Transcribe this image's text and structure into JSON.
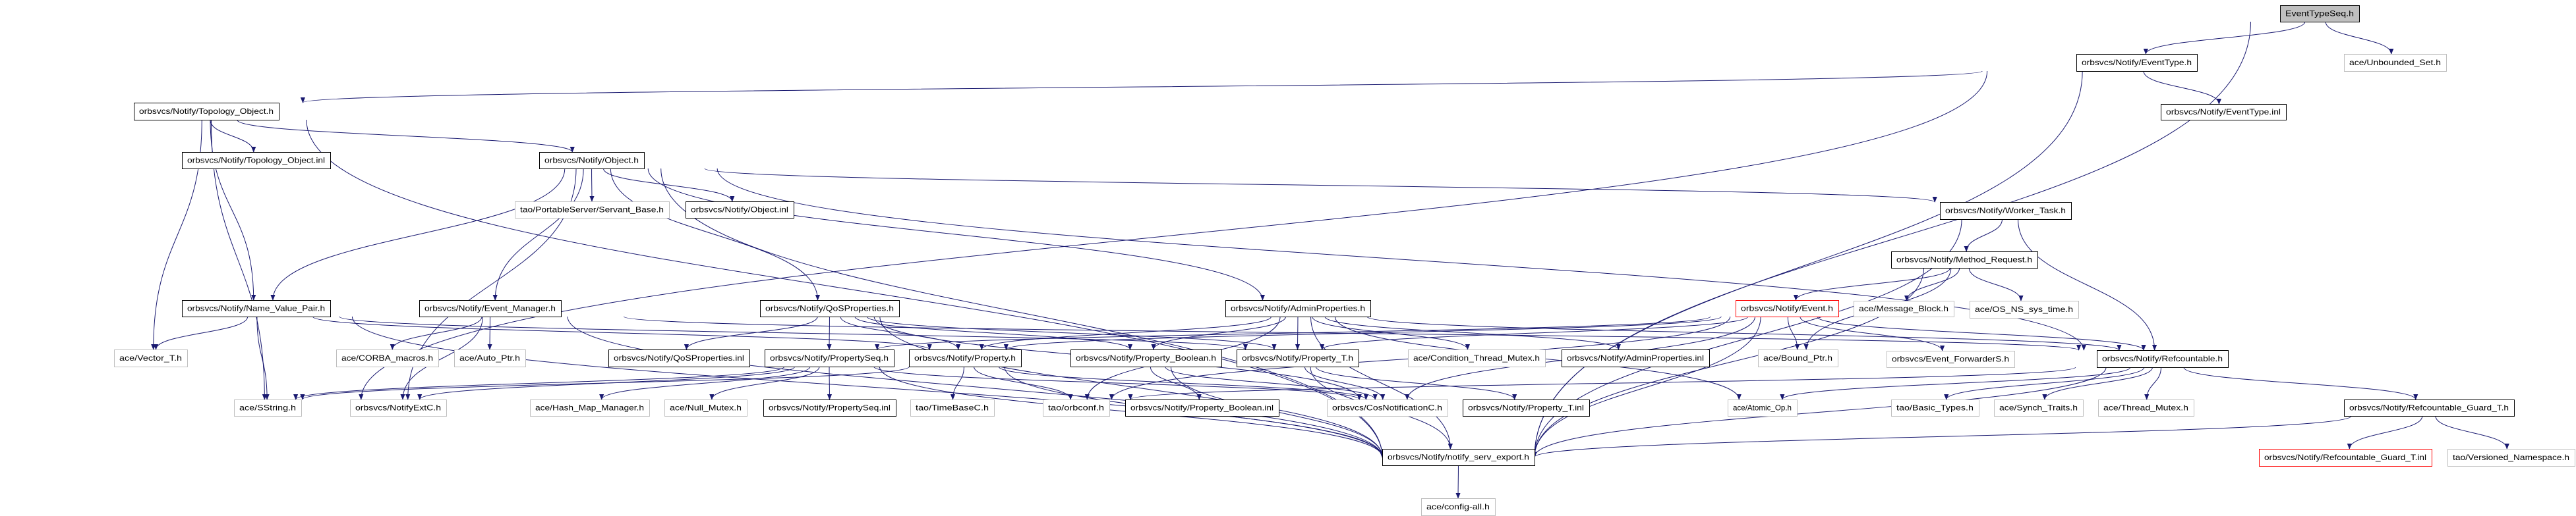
{
  "graph": {
    "edge_color": "#191970",
    "node_styles": {
      "root": {
        "fill": "#bfbfbf",
        "stroke": "#000000"
      },
      "documented": {
        "fill": "#ffffff",
        "stroke": "#000000"
      },
      "external": {
        "fill": "#ffffff",
        "stroke": "#bfbfbf"
      },
      "truncated": {
        "fill": "#ffffff",
        "stroke": "#ff0000"
      }
    },
    "nodes": [
      {
        "id": "root",
        "label": "EventTypeSeq.h",
        "style": "root"
      },
      {
        "id": "eventtype_h",
        "label": "orbsvcs/Notify/EventType.h",
        "style": "documented"
      },
      {
        "id": "unbounded_set",
        "label": "ace/Unbounded_Set.h",
        "style": "external"
      },
      {
        "id": "eventtype_inl",
        "label": "orbsvcs/Notify/EventType.inl",
        "style": "documented"
      },
      {
        "id": "topology_h",
        "label": "orbsvcs/Notify/Topology_Object.h",
        "style": "documented"
      },
      {
        "id": "topology_inl",
        "label": "orbsvcs/Notify/Topology_Object.inl",
        "style": "documented"
      },
      {
        "id": "object_h",
        "label": "orbsvcs/Notify/Object.h",
        "style": "documented"
      },
      {
        "id": "servant_base",
        "label": "tao/PortableServer/Servant_Base.h",
        "style": "external"
      },
      {
        "id": "object_inl",
        "label": "orbsvcs/Notify/Object.inl",
        "style": "documented"
      },
      {
        "id": "worker_task",
        "label": "orbsvcs/Notify/Worker_Task.h",
        "style": "documented"
      },
      {
        "id": "method_request",
        "label": "orbsvcs/Notify/Method_Request.h",
        "style": "documented"
      },
      {
        "id": "name_value_pair",
        "label": "orbsvcs/Notify/Name_Value_Pair.h",
        "style": "documented"
      },
      {
        "id": "event_manager",
        "label": "orbsvcs/Notify/Event_Manager.h",
        "style": "documented"
      },
      {
        "id": "qos_h",
        "label": "orbsvcs/Notify/QoSProperties.h",
        "style": "documented"
      },
      {
        "id": "admin_h",
        "label": "orbsvcs/Notify/AdminProperties.h",
        "style": "documented"
      },
      {
        "id": "event_h",
        "label": "orbsvcs/Notify/Event.h",
        "style": "truncated"
      },
      {
        "id": "message_block",
        "label": "ace/Message_Block.h",
        "style": "external"
      },
      {
        "id": "os_ns_sys_time",
        "label": "ace/OS_NS_sys_time.h",
        "style": "external"
      },
      {
        "id": "vector_t",
        "label": "ace/Vector_T.h",
        "style": "external"
      },
      {
        "id": "corba_macros",
        "label": "ace/CORBA_macros.h",
        "style": "external"
      },
      {
        "id": "auto_ptr",
        "label": "ace/Auto_Ptr.h",
        "style": "external"
      },
      {
        "id": "qos_inl",
        "label": "orbsvcs/Notify/QoSProperties.inl",
        "style": "documented"
      },
      {
        "id": "propertyseq_h",
        "label": "orbsvcs/Notify/PropertySeq.h",
        "style": "documented"
      },
      {
        "id": "property_h",
        "label": "orbsvcs/Notify/Property.h",
        "style": "documented"
      },
      {
        "id": "property_boolean_h",
        "label": "orbsvcs/Notify/Property_Boolean.h",
        "style": "documented"
      },
      {
        "id": "property_t_h",
        "label": "orbsvcs/Notify/Property_T.h",
        "style": "documented"
      },
      {
        "id": "condition_thread_mutex",
        "label": "ace/Condition_Thread_Mutex.h",
        "style": "external"
      },
      {
        "id": "admin_inl",
        "label": "orbsvcs/Notify/AdminProperties.inl",
        "style": "documented"
      },
      {
        "id": "bound_ptr",
        "label": "ace/Bound_Ptr.h",
        "style": "external"
      },
      {
        "id": "event_forwarders",
        "label": "orbsvcs/Event_ForwarderS.h",
        "style": "external"
      },
      {
        "id": "refcountable_h",
        "label": "orbsvcs/Notify/Refcountable.h",
        "style": "documented"
      },
      {
        "id": "sstring",
        "label": "ace/SString.h",
        "style": "external"
      },
      {
        "id": "notifyextc",
        "label": "orbsvcs/NotifyExtC.h",
        "style": "external"
      },
      {
        "id": "hash_map_manager",
        "label": "ace/Hash_Map_Manager.h",
        "style": "external"
      },
      {
        "id": "null_mutex",
        "label": "ace/Null_Mutex.h",
        "style": "external"
      },
      {
        "id": "propertyseq_inl",
        "label": "orbsvcs/Notify/PropertySeq.inl",
        "style": "documented"
      },
      {
        "id": "timebasec",
        "label": "tao/TimeBaseC.h",
        "style": "external"
      },
      {
        "id": "orbconf",
        "label": "tao/orbconf.h",
        "style": "external"
      },
      {
        "id": "property_boolean_inl",
        "label": "orbsvcs/Notify/Property_Boolean.inl",
        "style": "documented"
      },
      {
        "id": "cosnotificationc",
        "label": "orbsvcs/CosNotificationC.h",
        "style": "external"
      },
      {
        "id": "property_t_inl",
        "label": "orbsvcs/Notify/Property_T.inl",
        "style": "documented"
      },
      {
        "id": "atomic_op",
        "label": "ace/Atomic_Op.h",
        "style": "external"
      },
      {
        "id": "basic_types",
        "label": "tao/Basic_Types.h",
        "style": "external"
      },
      {
        "id": "synch_traits",
        "label": "ace/Synch_Traits.h",
        "style": "external"
      },
      {
        "id": "thread_mutex",
        "label": "ace/Thread_Mutex.h",
        "style": "external"
      },
      {
        "id": "refguard_h",
        "label": "orbsvcs/Notify/Refcountable_Guard_T.h",
        "style": "documented"
      },
      {
        "id": "refguard_inl",
        "label": "orbsvcs/Notify/Refcountable_Guard_T.inl",
        "style": "truncated"
      },
      {
        "id": "versioned_namespace",
        "label": "tao/Versioned_Namespace.h",
        "style": "external"
      },
      {
        "id": "notify_serv_export",
        "label": "orbsvcs/Notify/notify_serv_export.h",
        "style": "documented"
      },
      {
        "id": "config_all",
        "label": "ace/config-all.h",
        "style": "external"
      }
    ],
    "edges": [
      [
        "root",
        "eventtype_h"
      ],
      [
        "root",
        "unbounded_set"
      ],
      [
        "root",
        "notify_serv_export"
      ],
      [
        "eventtype_h",
        "topology_h"
      ],
      [
        "eventtype_h",
        "eventtype_inl"
      ],
      [
        "eventtype_h",
        "notify_serv_export"
      ],
      [
        "eventtype_h",
        "sstring"
      ],
      [
        "topology_h",
        "topology_inl"
      ],
      [
        "topology_h",
        "object_h"
      ],
      [
        "topology_h",
        "name_value_pair"
      ],
      [
        "topology_h",
        "vector_t"
      ],
      [
        "topology_h",
        "sstring"
      ],
      [
        "topology_h",
        "notify_serv_export"
      ],
      [
        "object_h",
        "servant_base"
      ],
      [
        "object_h",
        "object_inl"
      ],
      [
        "object_h",
        "worker_task"
      ],
      [
        "object_h",
        "refcountable_h"
      ],
      [
        "object_h",
        "name_value_pair"
      ],
      [
        "object_h",
        "event_manager"
      ],
      [
        "object_h",
        "qos_h"
      ],
      [
        "object_h",
        "admin_h"
      ],
      [
        "object_h",
        "notifyextc"
      ],
      [
        "object_h",
        "notify_serv_export"
      ],
      [
        "worker_task",
        "method_request"
      ],
      [
        "worker_task",
        "refcountable_h"
      ],
      [
        "worker_task",
        "notify_serv_export"
      ],
      [
        "method_request",
        "event_h"
      ],
      [
        "method_request",
        "message_block"
      ],
      [
        "method_request",
        "os_ns_sys_time"
      ],
      [
        "method_request",
        "bound_ptr"
      ],
      [
        "method_request",
        "notify_serv_export"
      ],
      [
        "event_h",
        "event_forwarders"
      ],
      [
        "event_h",
        "refcountable_h"
      ],
      [
        "event_h",
        "bound_ptr"
      ],
      [
        "event_h",
        "propertyseq_h"
      ],
      [
        "event_h",
        "property_h"
      ],
      [
        "event_h",
        "property_t_h"
      ],
      [
        "event_h",
        "orbconf"
      ],
      [
        "event_h",
        "cosnotificationc"
      ],
      [
        "event_h",
        "notify_serv_export"
      ],
      [
        "refcountable_h",
        "refguard_h"
      ],
      [
        "refcountable_h",
        "basic_types"
      ],
      [
        "refcountable_h",
        "synch_traits"
      ],
      [
        "refcountable_h",
        "thread_mutex"
      ],
      [
        "refcountable_h",
        "atomic_op"
      ],
      [
        "refcountable_h",
        "orbconf"
      ],
      [
        "refcountable_h",
        "notify_serv_export"
      ],
      [
        "refguard_h",
        "refguard_inl"
      ],
      [
        "refguard_h",
        "versioned_namespace"
      ],
      [
        "refguard_h",
        "notify_serv_export"
      ],
      [
        "name_value_pair",
        "vector_t"
      ],
      [
        "name_value_pair",
        "sstring"
      ],
      [
        "name_value_pair",
        "property_h"
      ],
      [
        "name_value_pair",
        "property_t_h"
      ],
      [
        "name_value_pair",
        "notify_serv_export"
      ],
      [
        "event_manager",
        "corba_macros"
      ],
      [
        "event_manager",
        "auto_ptr"
      ],
      [
        "event_manager",
        "notifyextc"
      ],
      [
        "event_manager",
        "refcountable_h"
      ],
      [
        "event_manager",
        "notify_serv_export"
      ],
      [
        "qos_h",
        "qos_inl"
      ],
      [
        "qos_h",
        "propertyseq_h"
      ],
      [
        "qos_h",
        "property_h"
      ],
      [
        "qos_h",
        "property_boolean_h"
      ],
      [
        "qos_h",
        "property_t_h"
      ],
      [
        "qos_h",
        "cosnotificationc"
      ],
      [
        "qos_h",
        "notify_serv_export"
      ],
      [
        "admin_h",
        "property_h"
      ],
      [
        "admin_h",
        "property_boolean_h"
      ],
      [
        "admin_h",
        "property_t_h"
      ],
      [
        "admin_h",
        "condition_thread_mutex"
      ],
      [
        "admin_h",
        "admin_inl"
      ],
      [
        "admin_h",
        "refcountable_h"
      ],
      [
        "admin_h",
        "orbconf"
      ],
      [
        "admin_h",
        "atomic_op"
      ],
      [
        "admin_h",
        "notify_serv_export"
      ],
      [
        "propertyseq_h",
        "propertyseq_inl"
      ],
      [
        "propertyseq_h",
        "null_mutex"
      ],
      [
        "propertyseq_h",
        "hash_map_manager"
      ],
      [
        "propertyseq_h",
        "sstring"
      ],
      [
        "propertyseq_h",
        "notifyextc"
      ],
      [
        "propertyseq_h",
        "cosnotificationc"
      ],
      [
        "propertyseq_h",
        "notify_serv_export"
      ],
      [
        "property_h",
        "timebasec"
      ],
      [
        "property_h",
        "orbconf"
      ],
      [
        "property_h",
        "sstring"
      ],
      [
        "property_h",
        "cosnotificationc"
      ],
      [
        "property_h",
        "notify_serv_export"
      ],
      [
        "property_boolean_h",
        "property_boolean_inl"
      ],
      [
        "property_boolean_h",
        "cosnotificationc"
      ],
      [
        "property_boolean_h",
        "notify_serv_export"
      ],
      [
        "property_t_h",
        "property_t_inl"
      ],
      [
        "property_t_h",
        "cosnotificationc"
      ],
      [
        "property_t_h",
        "notify_serv_export"
      ],
      [
        "notify_serv_export",
        "config_all"
      ]
    ]
  }
}
